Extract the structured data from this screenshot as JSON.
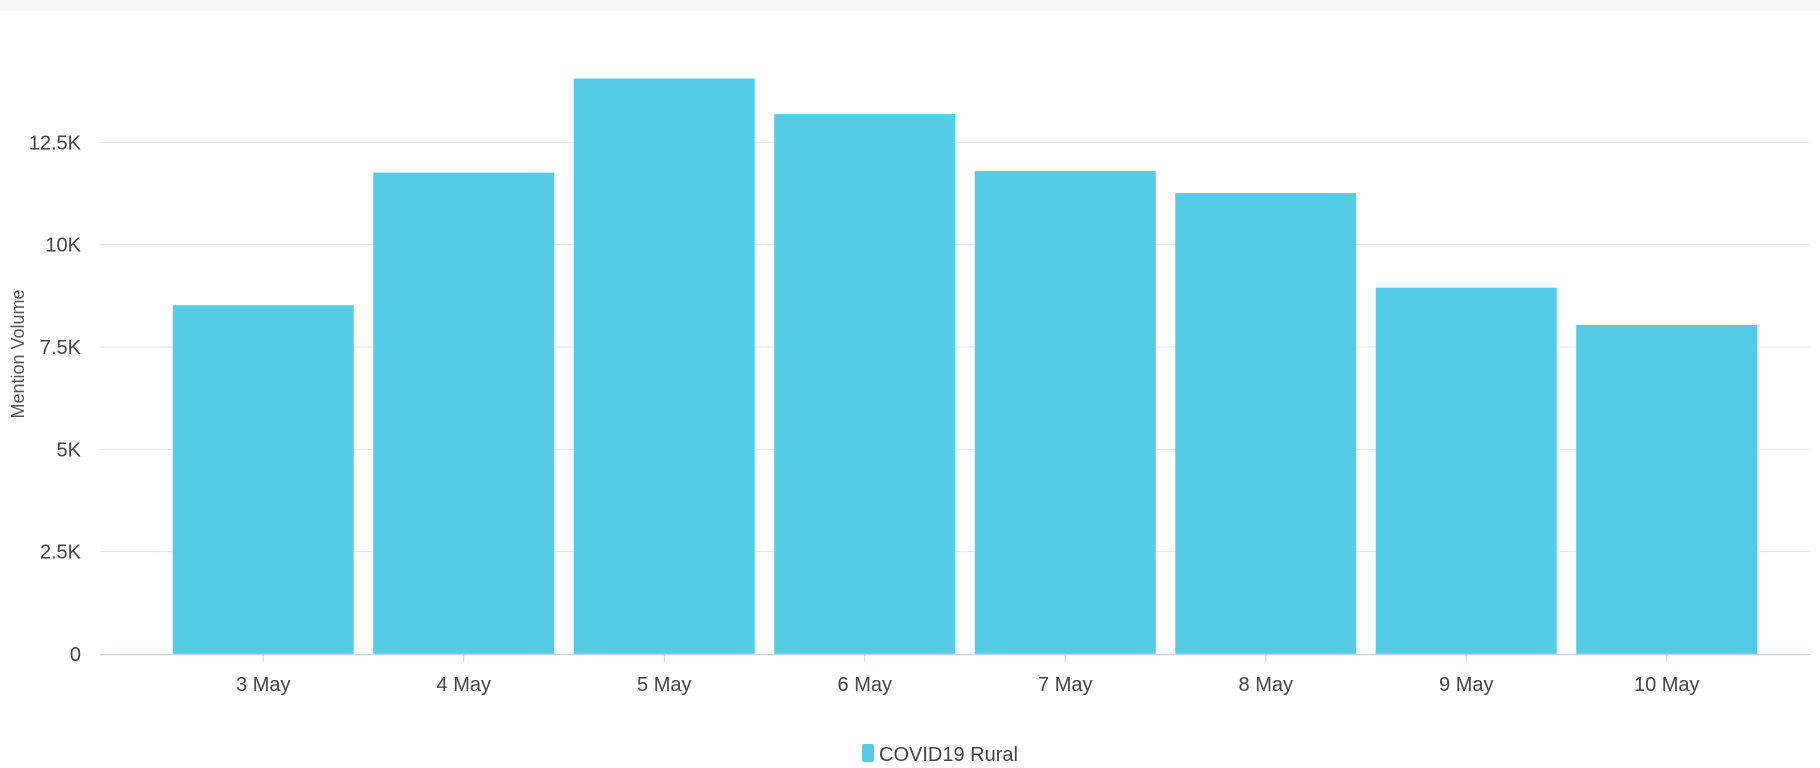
{
  "colors": {
    "bar": "#56cbe6",
    "grid": "#e6e6e6",
    "axis_line": "#c8d4e6",
    "text": "#444444"
  },
  "chart_data": {
    "type": "bar",
    "title": "",
    "xlabel": "",
    "ylabel": "Mention Volume",
    "categories": [
      "3 May",
      "4 May",
      "5 May",
      "6 May",
      "7 May",
      "8 May",
      "9 May",
      "10 May"
    ],
    "series": [
      {
        "name": "COVID19 Rural",
        "color": "#56cbe6",
        "values": [
          8520,
          11760,
          14060,
          13190,
          11800,
          11260,
          8950,
          8040
        ]
      }
    ],
    "ylim": [
      0,
      15000
    ],
    "yticks": [
      0,
      2500,
      5000,
      7500,
      10000,
      12500
    ],
    "ytick_labels": [
      "0",
      "2.5K",
      "5K",
      "7.5K",
      "10K",
      "12.5K"
    ],
    "grid": true,
    "legend_position": "bottom-center"
  }
}
